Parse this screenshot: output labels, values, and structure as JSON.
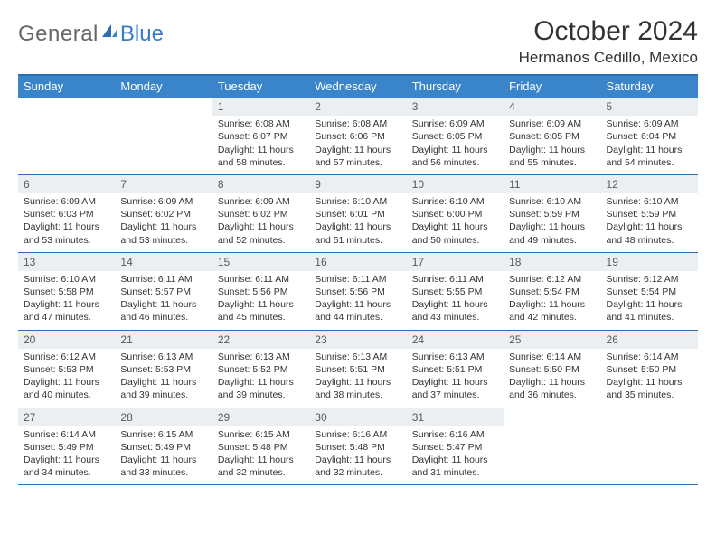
{
  "logo": {
    "text1": "General",
    "text2": "Blue"
  },
  "title": "October 2024",
  "location": "Hermanos Cedillo, Mexico",
  "colors": {
    "header_bg": "#3a85c9",
    "border": "#2b6fb0",
    "daynum_bg": "#eceff1",
    "text": "#333333"
  },
  "day_headers": [
    "Sunday",
    "Monday",
    "Tuesday",
    "Wednesday",
    "Thursday",
    "Friday",
    "Saturday"
  ],
  "weeks": [
    [
      {
        "n": "",
        "empty": true
      },
      {
        "n": "",
        "empty": true
      },
      {
        "n": "1",
        "sunrise": "6:08 AM",
        "sunset": "6:07 PM",
        "daylight": "11 hours and 58 minutes."
      },
      {
        "n": "2",
        "sunrise": "6:08 AM",
        "sunset": "6:06 PM",
        "daylight": "11 hours and 57 minutes."
      },
      {
        "n": "3",
        "sunrise": "6:09 AM",
        "sunset": "6:05 PM",
        "daylight": "11 hours and 56 minutes."
      },
      {
        "n": "4",
        "sunrise": "6:09 AM",
        "sunset": "6:05 PM",
        "daylight": "11 hours and 55 minutes."
      },
      {
        "n": "5",
        "sunrise": "6:09 AM",
        "sunset": "6:04 PM",
        "daylight": "11 hours and 54 minutes."
      }
    ],
    [
      {
        "n": "6",
        "sunrise": "6:09 AM",
        "sunset": "6:03 PM",
        "daylight": "11 hours and 53 minutes."
      },
      {
        "n": "7",
        "sunrise": "6:09 AM",
        "sunset": "6:02 PM",
        "daylight": "11 hours and 53 minutes."
      },
      {
        "n": "8",
        "sunrise": "6:09 AM",
        "sunset": "6:02 PM",
        "daylight": "11 hours and 52 minutes."
      },
      {
        "n": "9",
        "sunrise": "6:10 AM",
        "sunset": "6:01 PM",
        "daylight": "11 hours and 51 minutes."
      },
      {
        "n": "10",
        "sunrise": "6:10 AM",
        "sunset": "6:00 PM",
        "daylight": "11 hours and 50 minutes."
      },
      {
        "n": "11",
        "sunrise": "6:10 AM",
        "sunset": "5:59 PM",
        "daylight": "11 hours and 49 minutes."
      },
      {
        "n": "12",
        "sunrise": "6:10 AM",
        "sunset": "5:59 PM",
        "daylight": "11 hours and 48 minutes."
      }
    ],
    [
      {
        "n": "13",
        "sunrise": "6:10 AM",
        "sunset": "5:58 PM",
        "daylight": "11 hours and 47 minutes."
      },
      {
        "n": "14",
        "sunrise": "6:11 AM",
        "sunset": "5:57 PM",
        "daylight": "11 hours and 46 minutes."
      },
      {
        "n": "15",
        "sunrise": "6:11 AM",
        "sunset": "5:56 PM",
        "daylight": "11 hours and 45 minutes."
      },
      {
        "n": "16",
        "sunrise": "6:11 AM",
        "sunset": "5:56 PM",
        "daylight": "11 hours and 44 minutes."
      },
      {
        "n": "17",
        "sunrise": "6:11 AM",
        "sunset": "5:55 PM",
        "daylight": "11 hours and 43 minutes."
      },
      {
        "n": "18",
        "sunrise": "6:12 AM",
        "sunset": "5:54 PM",
        "daylight": "11 hours and 42 minutes."
      },
      {
        "n": "19",
        "sunrise": "6:12 AM",
        "sunset": "5:54 PM",
        "daylight": "11 hours and 41 minutes."
      }
    ],
    [
      {
        "n": "20",
        "sunrise": "6:12 AM",
        "sunset": "5:53 PM",
        "daylight": "11 hours and 40 minutes."
      },
      {
        "n": "21",
        "sunrise": "6:13 AM",
        "sunset": "5:53 PM",
        "daylight": "11 hours and 39 minutes."
      },
      {
        "n": "22",
        "sunrise": "6:13 AM",
        "sunset": "5:52 PM",
        "daylight": "11 hours and 39 minutes."
      },
      {
        "n": "23",
        "sunrise": "6:13 AM",
        "sunset": "5:51 PM",
        "daylight": "11 hours and 38 minutes."
      },
      {
        "n": "24",
        "sunrise": "6:13 AM",
        "sunset": "5:51 PM",
        "daylight": "11 hours and 37 minutes."
      },
      {
        "n": "25",
        "sunrise": "6:14 AM",
        "sunset": "5:50 PM",
        "daylight": "11 hours and 36 minutes."
      },
      {
        "n": "26",
        "sunrise": "6:14 AM",
        "sunset": "5:50 PM",
        "daylight": "11 hours and 35 minutes."
      }
    ],
    [
      {
        "n": "27",
        "sunrise": "6:14 AM",
        "sunset": "5:49 PM",
        "daylight": "11 hours and 34 minutes."
      },
      {
        "n": "28",
        "sunrise": "6:15 AM",
        "sunset": "5:49 PM",
        "daylight": "11 hours and 33 minutes."
      },
      {
        "n": "29",
        "sunrise": "6:15 AM",
        "sunset": "5:48 PM",
        "daylight": "11 hours and 32 minutes."
      },
      {
        "n": "30",
        "sunrise": "6:16 AM",
        "sunset": "5:48 PM",
        "daylight": "11 hours and 32 minutes."
      },
      {
        "n": "31",
        "sunrise": "6:16 AM",
        "sunset": "5:47 PM",
        "daylight": "11 hours and 31 minutes."
      },
      {
        "n": "",
        "empty": true
      },
      {
        "n": "",
        "empty": true
      }
    ]
  ],
  "labels": {
    "sunrise": "Sunrise: ",
    "sunset": "Sunset: ",
    "daylight": "Daylight: "
  }
}
